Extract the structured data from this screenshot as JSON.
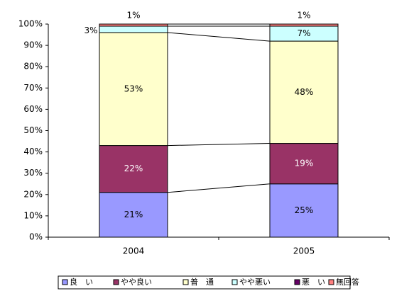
{
  "chart_data": {
    "type": "stacked-bar",
    "categories": [
      "2004",
      "2005"
    ],
    "series": [
      {
        "name": "良　い",
        "color": "#9999ff",
        "values": [
          21,
          25
        ],
        "value_labels": [
          "21%",
          "25%"
        ]
      },
      {
        "name": "やや良い",
        "color": "#993366",
        "values": [
          22,
          19
        ],
        "value_labels": [
          "22%",
          "19%"
        ]
      },
      {
        "name": "普　通",
        "color": "#ffffcc",
        "values": [
          53,
          48
        ],
        "value_labels": [
          "53%",
          "48%"
        ]
      },
      {
        "name": "やや悪い",
        "color": "#ccffff",
        "values": [
          3,
          7
        ],
        "value_labels": [
          "3%",
          "7%"
        ]
      },
      {
        "name": "悪　い",
        "color": "#660066",
        "values": [
          0,
          0
        ]
      },
      {
        "name": "無回答",
        "color": "#ff8080",
        "values": [
          1,
          1
        ],
        "value_labels": [
          "1%",
          "1%"
        ]
      }
    ],
    "ylim": [
      0,
      100
    ],
    "yticks": [
      {
        "value": 0,
        "label": "0%"
      },
      {
        "value": 10,
        "label": "10%"
      },
      {
        "value": 20,
        "label": "20%"
      },
      {
        "value": 30,
        "label": "30%"
      },
      {
        "value": 40,
        "label": "40%"
      },
      {
        "value": 50,
        "label": "50%"
      },
      {
        "value": 60,
        "label": "60%"
      },
      {
        "value": 70,
        "label": "70%"
      },
      {
        "value": 80,
        "label": "80%"
      },
      {
        "value": 90,
        "label": "90%"
      },
      {
        "value": 100,
        "label": "100%"
      }
    ],
    "legend": "bottom"
  }
}
